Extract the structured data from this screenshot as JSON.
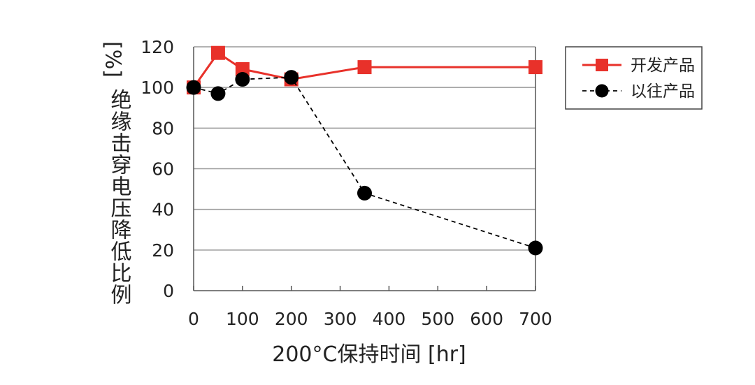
{
  "chart_data": {
    "type": "line",
    "xlabel": "200°C保持时间 [hr]",
    "ylabel": "[%] 绝缘击穿电压降低比例",
    "ylabel_unit": "[%]",
    "ylabel_text": "绝缘击穿电压降低比例",
    "xlim": [
      0,
      700
    ],
    "ylim": [
      0,
      120
    ],
    "x_ticks": [
      0,
      100,
      200,
      300,
      400,
      500,
      600,
      700
    ],
    "y_ticks": [
      0,
      20,
      40,
      60,
      80,
      100,
      120
    ],
    "grid": "horizontal",
    "legend": "top-right, outside plot",
    "series": [
      {
        "name": "开发产品",
        "color": "#e8312a",
        "marker": "square",
        "line": "solid",
        "x": [
          0,
          50,
          100,
          200,
          350,
          700
        ],
        "y": [
          100,
          117,
          109,
          104,
          110,
          110
        ]
      },
      {
        "name": "以往产品",
        "color": "#000000",
        "marker": "circle",
        "line": "dashed",
        "x": [
          0,
          50,
          100,
          200,
          350,
          700
        ],
        "y": [
          100,
          97,
          104,
          105,
          48,
          21
        ]
      }
    ]
  }
}
